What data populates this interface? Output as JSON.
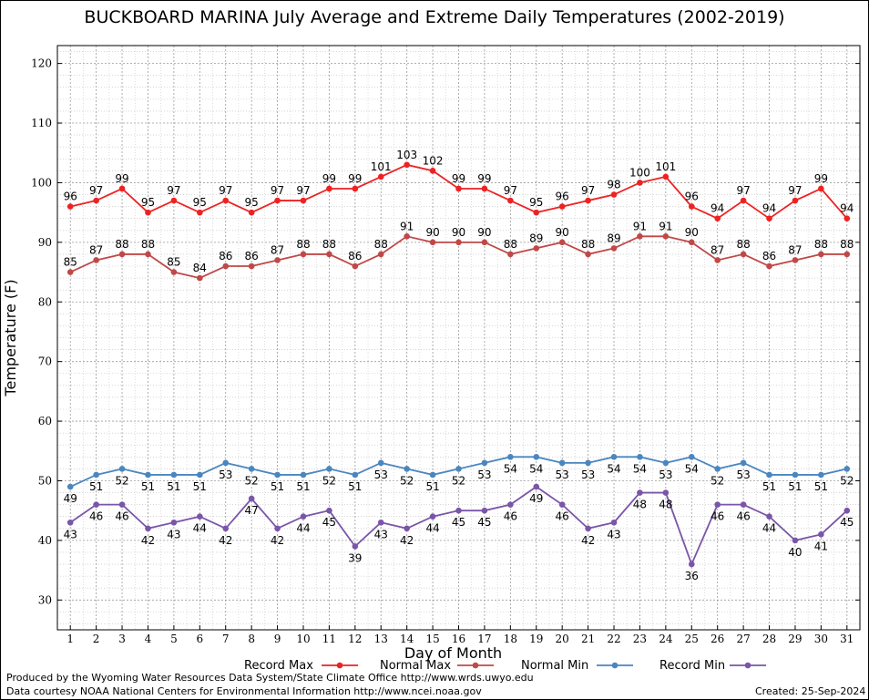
{
  "chart_data": {
    "type": "line",
    "title": "BUCKBOARD MARINA July Average and Extreme Daily Temperatures (2002-2019)",
    "xlabel": "Day of Month",
    "ylabel": "Temperature (F)",
    "x": [
      1,
      2,
      3,
      4,
      5,
      6,
      7,
      8,
      9,
      10,
      11,
      12,
      13,
      14,
      15,
      16,
      17,
      18,
      19,
      20,
      21,
      22,
      23,
      24,
      25,
      26,
      27,
      28,
      29,
      30,
      31
    ],
    "xlim": [
      0.5,
      31.5
    ],
    "ylim": [
      25,
      123
    ],
    "yticks": [
      30,
      40,
      50,
      60,
      70,
      80,
      90,
      100,
      110,
      120
    ],
    "grid": true,
    "legend_position": "bottom",
    "series": [
      {
        "name": "Record Max",
        "color": "#ee2222",
        "values": [
          96,
          97,
          99,
          95,
          97,
          95,
          97,
          95,
          97,
          97,
          99,
          99,
          101,
          103,
          102,
          99,
          99,
          97,
          95,
          96,
          97,
          98,
          100,
          101,
          96,
          94,
          97,
          94,
          97,
          99,
          94
        ]
      },
      {
        "name": "Normal Max",
        "color": "#c04848",
        "values": [
          85,
          87,
          88,
          88,
          85,
          84,
          86,
          86,
          87,
          88,
          88,
          86,
          88,
          91,
          90,
          90,
          90,
          88,
          89,
          90,
          88,
          89,
          91,
          91,
          90,
          87,
          88,
          86,
          87,
          88,
          88
        ]
      },
      {
        "name": "Normal Min",
        "color": "#4a86c0",
        "values": [
          49,
          51,
          52,
          51,
          51,
          51,
          53,
          52,
          51,
          51,
          52,
          51,
          53,
          52,
          51,
          52,
          53,
          54,
          54,
          53,
          53,
          54,
          54,
          53,
          54,
          52,
          53,
          51,
          51,
          51,
          52
        ]
      },
      {
        "name": "Record Min",
        "color": "#7a55a8",
        "values": [
          43,
          46,
          46,
          42,
          43,
          44,
          42,
          47,
          42,
          44,
          45,
          39,
          43,
          42,
          44,
          45,
          45,
          46,
          49,
          46,
          42,
          43,
          48,
          48,
          36,
          46,
          46,
          44,
          40,
          41,
          45
        ]
      }
    ]
  },
  "footer": {
    "produced_by": "Produced by the Wyoming Water Resources Data System/State Climate Office http://www.wrds.uwyo.edu",
    "courtesy": "Data courtesy NOAA National Centers for Environmental Information http://www.ncei.noaa.gov",
    "created": "Created: 25-Sep-2024"
  }
}
